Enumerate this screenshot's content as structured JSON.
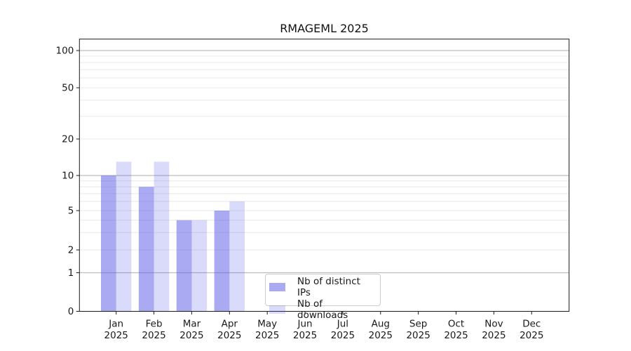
{
  "chart_data": {
    "type": "bar",
    "title": "RMAGEML 2025",
    "categories": [
      "Jan",
      "Feb",
      "Mar",
      "Apr",
      "May",
      "Jun",
      "Jul",
      "Aug",
      "Sep",
      "Oct",
      "Nov",
      "Dec"
    ],
    "category_year": "2025",
    "series": [
      {
        "name": "Nb of distinct IPs",
        "color": "rgba(85,85,230,0.5)",
        "values": [
          10,
          8,
          4,
          5,
          0,
          0,
          0,
          0,
          0,
          0,
          0,
          0
        ]
      },
      {
        "name": "Nb of downloads",
        "color": "rgba(85,85,230,0.22)",
        "values": [
          13,
          13,
          4,
          6,
          0,
          0,
          0,
          0,
          0,
          0,
          0,
          0
        ]
      }
    ],
    "y_axis": {
      "scale": "symlog",
      "labeled_ticks": [
        0,
        1,
        2,
        5,
        10,
        20,
        50,
        100
      ],
      "major_gridlines": [
        1,
        10,
        100
      ],
      "minor_gridlines": [
        2,
        3,
        4,
        5,
        6,
        7,
        8,
        9,
        20,
        30,
        40,
        50,
        60,
        70,
        80,
        90
      ]
    },
    "legend": {
      "position": "lower center"
    },
    "grid": true,
    "colors": {
      "major_grid": "#bdbdbd",
      "minor_grid": "#e8e8e8",
      "spine": "#1a1a1a",
      "text": "#191919",
      "legend_border": "#cccccc",
      "legend_bg": "rgba(255,255,255,0.85)"
    }
  }
}
